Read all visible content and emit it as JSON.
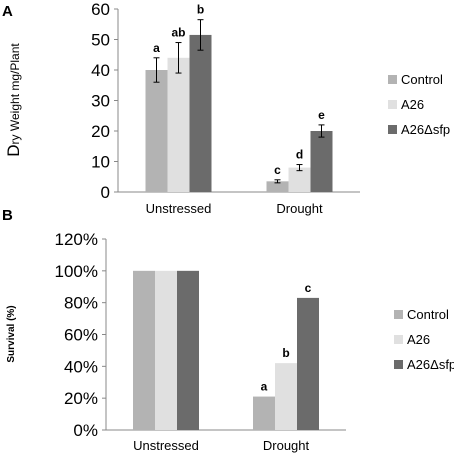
{
  "chart_data": [
    {
      "type": "bar",
      "panel_label": "A",
      "ylabel": "Dry Weight mg/Plant",
      "ylabel_parts": [
        "D",
        "ry Weight mg/Plant"
      ],
      "categories": [
        "Unstressed",
        "Drought"
      ],
      "ylim": [
        0,
        60
      ],
      "yticks": [
        "0",
        "10",
        "20",
        "30",
        "40",
        "50",
        "60"
      ],
      "grid": false,
      "legend_position": "right",
      "error_bars": true,
      "series": [
        {
          "name": "Control",
          "color": "#b3b3b3",
          "values": [
            40,
            3.5
          ],
          "errors": [
            4,
            0.5
          ],
          "labels": [
            "a",
            "c"
          ]
        },
        {
          "name": "A26",
          "color": "#e0e0e0",
          "values": [
            44,
            8
          ],
          "errors": [
            5,
            1
          ],
          "labels": [
            "ab",
            "d"
          ]
        },
        {
          "name": "A26Δsfp",
          "color": "#6b6b6b",
          "values": [
            51.5,
            20
          ],
          "errors": [
            5,
            2
          ],
          "labels": [
            "b",
            "e"
          ]
        }
      ]
    },
    {
      "type": "bar",
      "panel_label": "B",
      "ylabel": "Survival (%)",
      "categories": [
        "Unstressed",
        "Drought"
      ],
      "ylim": [
        0,
        120
      ],
      "yticks": [
        "0%",
        "20%",
        "40%",
        "60%",
        "80%",
        "100%",
        "120%"
      ],
      "grid": false,
      "legend_position": "right",
      "error_bars": false,
      "series": [
        {
          "name": "Control",
          "color": "#b3b3b3",
          "values": [
            100,
            21
          ],
          "labels": [
            "",
            "a"
          ]
        },
        {
          "name": "A26",
          "color": "#e0e0e0",
          "values": [
            100,
            42
          ],
          "labels": [
            "",
            "b"
          ]
        },
        {
          "name": "A26Δsfp",
          "color": "#6b6b6b",
          "values": [
            100,
            83
          ],
          "labels": [
            "",
            "c"
          ]
        }
      ]
    }
  ]
}
